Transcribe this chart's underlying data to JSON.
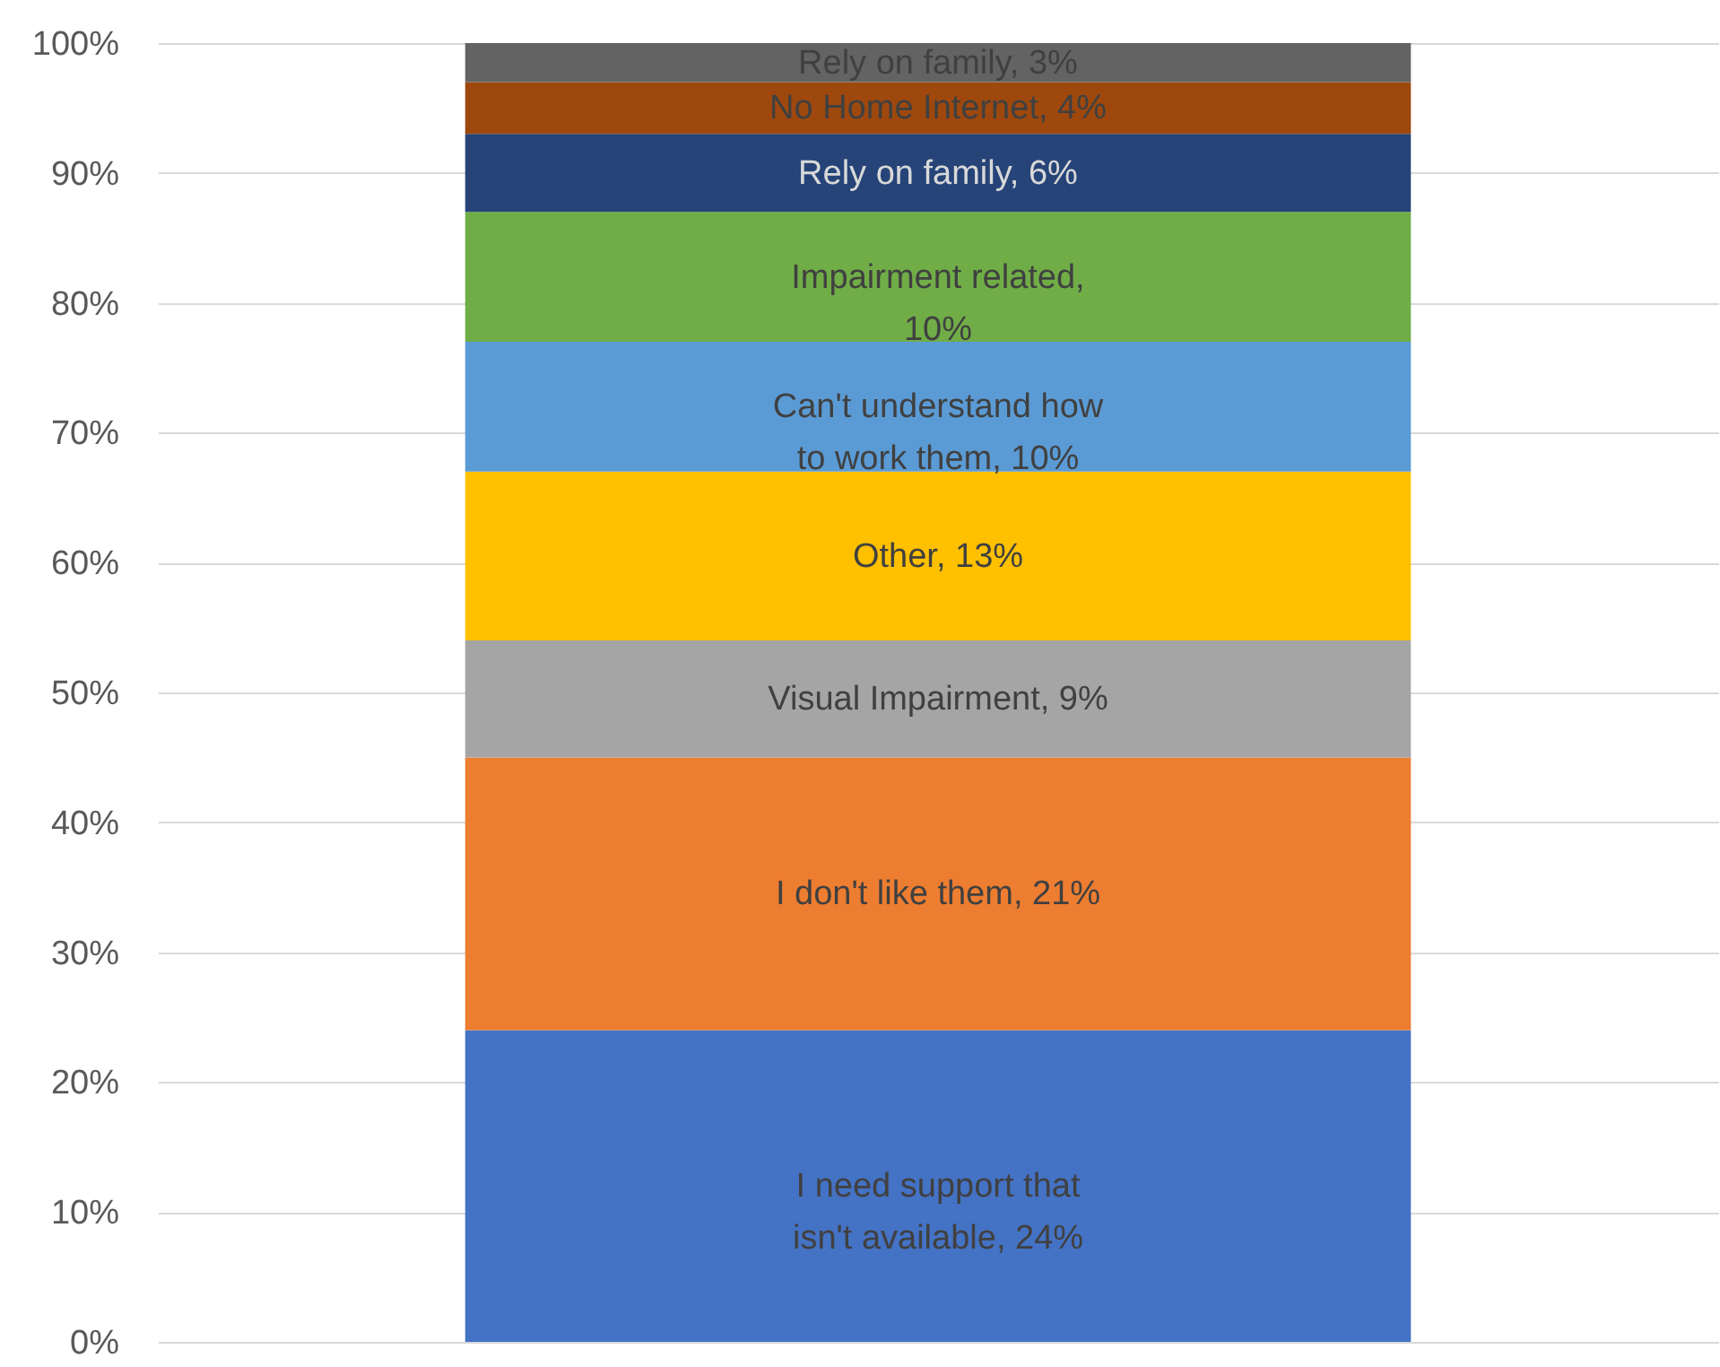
{
  "chart_data": {
    "type": "bar",
    "stacked": true,
    "categories": [
      null
    ],
    "ylim": [
      0,
      100
    ],
    "yticks": [
      {
        "value": 0,
        "label": "0%"
      },
      {
        "value": 10,
        "label": "10%"
      },
      {
        "value": 20,
        "label": "20%"
      },
      {
        "value": 30,
        "label": "30%"
      },
      {
        "value": 40,
        "label": "40%"
      },
      {
        "value": 50,
        "label": "50%"
      },
      {
        "value": 60,
        "label": "60%"
      },
      {
        "value": 70,
        "label": "70%"
      },
      {
        "value": 80,
        "label": "80%"
      },
      {
        "value": 90,
        "label": "90%"
      },
      {
        "value": 100,
        "label": "100%"
      }
    ],
    "grid": "y",
    "series": [
      {
        "color": "#4472c4",
        "values": [
          24
        ],
        "value_labels": [
          "I need support that isn't available, 24%"
        ]
      },
      {
        "color": "#ed7d31",
        "values": [
          21
        ],
        "value_labels": [
          "I don't like them, 21%"
        ]
      },
      {
        "color": "#a5a5a5",
        "values": [
          9
        ],
        "value_labels": [
          "Visual Impairment, 9%"
        ]
      },
      {
        "color": "#ffc000",
        "values": [
          13
        ],
        "value_labels": [
          "Other, 13%"
        ]
      },
      {
        "color": "#5b9bd5",
        "values": [
          10
        ],
        "value_labels": [
          "Can't understand how to work them, 10%"
        ]
      },
      {
        "color": "#70ad47",
        "values": [
          10
        ],
        "value_labels": [
          "Impairment related, 10%"
        ]
      },
      {
        "color": "#264478",
        "values": [
          6
        ],
        "value_labels": [
          "Rely on family, 6%"
        ]
      },
      {
        "color": "#9e480e",
        "values": [
          4
        ],
        "value_labels": [
          "No Home Internet, 4%"
        ]
      },
      {
        "color": "#636363",
        "values": [
          3
        ],
        "value_labels": [
          "Rely on family, 3%"
        ]
      }
    ]
  }
}
